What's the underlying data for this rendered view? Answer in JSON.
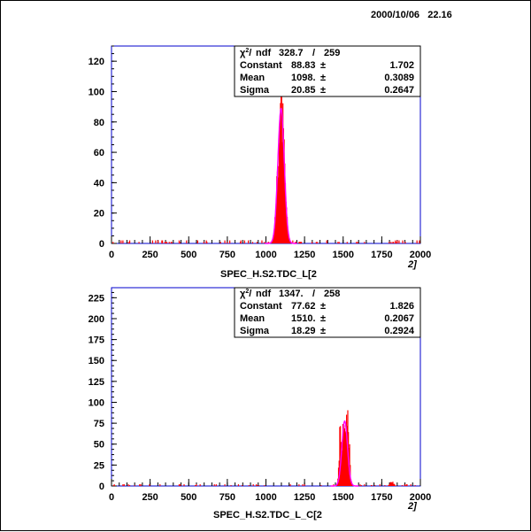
{
  "canvas": {
    "datestamp": "2000/10/06   22.16"
  },
  "chart_data": [
    {
      "type": "histogram",
      "xlabel": "SPEC_H.S2.TDC_L[2",
      "xlabel_suffix": "2]",
      "xlim": [
        0,
        2000
      ],
      "ylim": [
        0,
        130
      ],
      "x_ticks": [
        "0",
        "250",
        "500",
        "750",
        "1000",
        "1250",
        "1500",
        "1750",
        "2000"
      ],
      "y_ticks": [
        "0",
        "20",
        "40",
        "60",
        "80",
        "100",
        "120"
      ],
      "y_tick_values": [
        0,
        20,
        40,
        60,
        80,
        100,
        120
      ],
      "fit": {
        "type": "gaussian",
        "constant": 88.83,
        "mean": 1098,
        "sigma": 20.85
      },
      "secondary_peaks": [],
      "stats": {
        "chi2_label": "ndf",
        "chi2": "328.7",
        "ndf": "259",
        "rows": [
          {
            "name": "Constant",
            "value": "88.83",
            "error": "1.702"
          },
          {
            "name": "Mean",
            "value": "1098.",
            "error": "0.3089"
          },
          {
            "name": "Sigma",
            "value": "20.85",
            "error": "0.2647"
          }
        ]
      },
      "colors": {
        "histogram": "#ff0000",
        "fit": "#ff00ff",
        "frame": "#0000cc"
      }
    },
    {
      "type": "histogram",
      "xlabel": "SPEC_H.S2.TDC_L_C[2",
      "xlabel_suffix": "2]",
      "xlim": [
        0,
        2000
      ],
      "ylim": [
        0,
        237
      ],
      "x_ticks": [
        "0",
        "250",
        "500",
        "750",
        "1000",
        "1250",
        "1500",
        "1750",
        "2000"
      ],
      "y_ticks": [
        "0",
        "25",
        "50",
        "75",
        "100",
        "125",
        "150",
        "175",
        "200",
        "225"
      ],
      "y_tick_values": [
        0,
        25,
        50,
        75,
        100,
        125,
        150,
        175,
        200,
        225
      ],
      "fit": {
        "type": "gaussian",
        "constant": 77.62,
        "mean": 1510,
        "sigma": 18.29
      },
      "secondary_peaks": [
        {
          "center": 1480,
          "sigma": 6,
          "amplitude": 45
        },
        {
          "center": 1535,
          "sigma": 7,
          "amplitude": 40
        },
        {
          "center": 1815,
          "sigma": 12,
          "amplitude": 5
        }
      ],
      "stats": {
        "chi2_label": "ndf",
        "chi2": "1347.",
        "ndf": "258",
        "rows": [
          {
            "name": "Constant",
            "value": "77.62",
            "error": "1.826"
          },
          {
            "name": "Mean",
            "value": "1510.",
            "error": "0.2067"
          },
          {
            "name": "Sigma",
            "value": "18.29",
            "error": "0.2924"
          }
        ]
      },
      "colors": {
        "histogram": "#ff0000",
        "fit": "#ff00ff",
        "frame": "#0000cc"
      }
    }
  ]
}
